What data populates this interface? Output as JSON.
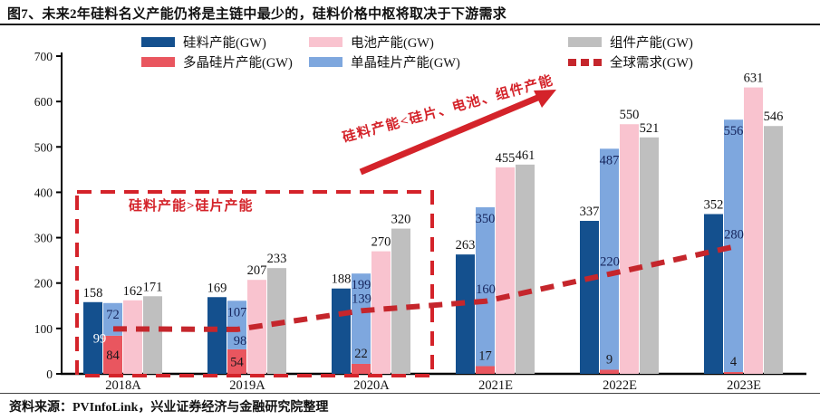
{
  "title": "图7、未来2年硅料名义产能仍将是主链中最少的，硅料价格中枢将取决于下游需求",
  "source": "资料来源：PVInfoLink，兴业证券经济与金融研究院整理",
  "chart_data": {
    "type": "bar+line",
    "categories": [
      "2018A",
      "2019A",
      "2020A",
      "2021E",
      "2022E",
      "2023E"
    ],
    "series": [
      {
        "id": "poly-silicon-capacity",
        "name": "硅料产能(GW)",
        "type": "bar",
        "color": "#14508e",
        "values": [
          158,
          169,
          188,
          263,
          337,
          352
        ]
      },
      {
        "id": "multi-wafer-capacity",
        "name": "多晶硅片产能(GW)",
        "type": "bar-stacked",
        "stack": "wafer",
        "color": "#e9565f",
        "values": [
          84,
          54,
          22,
          17,
          9,
          4
        ]
      },
      {
        "id": "mono-wafer-capacity",
        "name": "单晶硅片产能(GW)",
        "type": "bar-stacked",
        "stack": "wafer",
        "color": "#7ea7de",
        "values": [
          72,
          107,
          199,
          350,
          487,
          556
        ]
      },
      {
        "id": "cell-capacity",
        "name": "电池产能(GW)",
        "type": "bar",
        "color": "#f9c3cf",
        "values": [
          162,
          207,
          270,
          455,
          550,
          631
        ]
      },
      {
        "id": "module-capacity",
        "name": "组件产能(GW)",
        "type": "bar",
        "color": "#bfbfbf",
        "values": [
          171,
          233,
          320,
          461,
          521,
          546
        ]
      },
      {
        "id": "global-demand",
        "name": "全球需求(GW)",
        "type": "line-dashed",
        "color": "#c5262c",
        "values": [
          99,
          98,
          139,
          160,
          220,
          280
        ]
      }
    ],
    "ylim": [
      0,
      700
    ],
    "yticks": [
      0,
      100,
      200,
      300,
      400,
      500,
      600,
      700
    ],
    "grid": false,
    "legend_position": "top",
    "annotations": {
      "box_label": "硅料产能>硅片产能",
      "arrow_label": "硅料产能<硅片、电池、组件产能"
    }
  }
}
